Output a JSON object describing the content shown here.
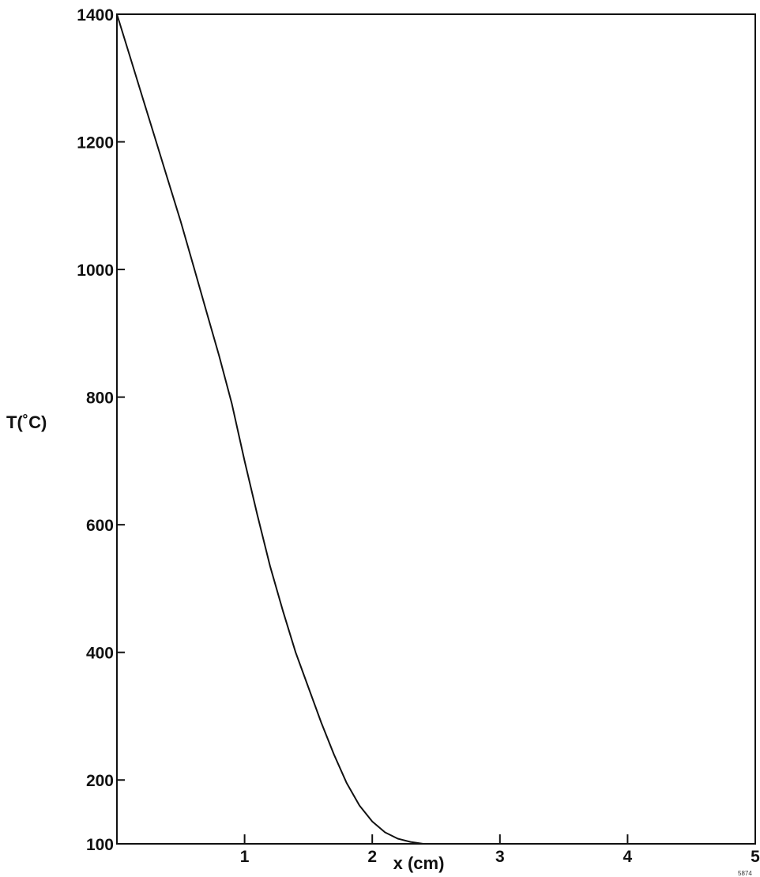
{
  "chart_data": {
    "type": "line",
    "title": "",
    "xlabel": "x (cm)",
    "ylabel": "T(˚C)",
    "xlim": [
      0,
      5
    ],
    "ylim": [
      100,
      1400
    ],
    "x_ticks": [
      1,
      2,
      3,
      4,
      5
    ],
    "x_tick_labels": [
      "1",
      "2",
      "3",
      "4",
      "5"
    ],
    "y_ticks": [
      100,
      200,
      400,
      600,
      800,
      1000,
      1200,
      1400
    ],
    "y_tick_labels": [
      "100",
      "200",
      "400",
      "600",
      "800",
      "1000",
      "1200",
      "1400"
    ],
    "grid": false,
    "legend": "none",
    "series": [
      {
        "x": [
          0,
          0.1,
          0.2,
          0.3,
          0.4,
          0.5,
          0.6,
          0.7,
          0.8,
          0.9,
          1.0,
          1.1,
          1.2,
          1.3,
          1.4,
          1.5,
          1.6,
          1.7,
          1.8,
          1.9,
          2.0,
          2.1,
          2.2,
          2.3,
          2.4,
          2.5,
          3.0,
          3.5,
          4.0,
          4.5,
          5.0
        ],
        "y": [
          1400,
          1335,
          1270,
          1205,
          1140,
          1075,
          1005,
          935,
          865,
          790,
          700,
          615,
          535,
          465,
          400,
          345,
          290,
          240,
          195,
          160,
          135,
          118,
          108,
          103,
          100,
          100,
          100,
          100,
          100,
          100,
          100
        ]
      }
    ]
  },
  "fig_id": "5874"
}
